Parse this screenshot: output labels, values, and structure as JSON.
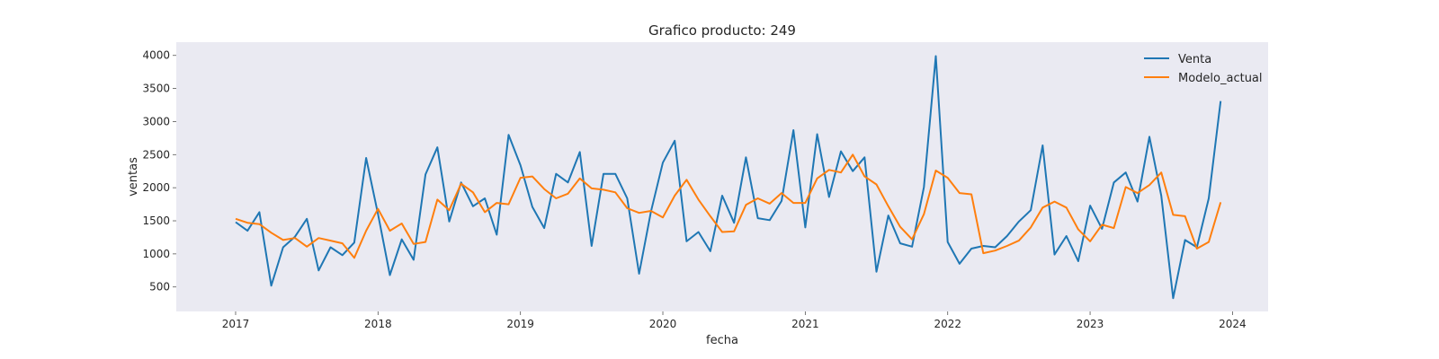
{
  "chart_data": {
    "type": "line",
    "title": "Grafico producto: 249",
    "xlabel": "fecha",
    "ylabel": "ventas",
    "x_ticks": [
      "2017",
      "2018",
      "2019",
      "2020",
      "2021",
      "2022",
      "2023",
      "2024"
    ],
    "y_ticks": [
      "500",
      "1000",
      "1500",
      "2000",
      "2500",
      "3000",
      "3500",
      "4000"
    ],
    "xlim": [
      "2016-08",
      "2024-04"
    ],
    "ylim": [
      130,
      4200
    ],
    "grid": false,
    "legend_position": "top-right",
    "x": [
      "2017-01",
      "2017-02",
      "2017-03",
      "2017-04",
      "2017-05",
      "2017-06",
      "2017-07",
      "2017-08",
      "2017-09",
      "2017-10",
      "2017-11",
      "2017-12",
      "2018-01",
      "2018-02",
      "2018-03",
      "2018-04",
      "2018-05",
      "2018-06",
      "2018-07",
      "2018-08",
      "2018-09",
      "2018-10",
      "2018-11",
      "2018-12",
      "2019-01",
      "2019-02",
      "2019-03",
      "2019-04",
      "2019-05",
      "2019-06",
      "2019-07",
      "2019-08",
      "2019-09",
      "2019-10",
      "2019-11",
      "2019-12",
      "2020-01",
      "2020-02",
      "2020-03",
      "2020-04",
      "2020-05",
      "2020-06",
      "2020-07",
      "2020-08",
      "2020-09",
      "2020-10",
      "2020-11",
      "2020-12",
      "2021-01",
      "2021-02",
      "2021-03",
      "2021-04",
      "2021-05",
      "2021-06",
      "2021-07",
      "2021-08",
      "2021-09",
      "2021-10",
      "2021-11",
      "2021-12",
      "2022-01",
      "2022-02",
      "2022-03",
      "2022-04",
      "2022-05",
      "2022-06",
      "2022-07",
      "2022-08",
      "2022-09",
      "2022-10",
      "2022-11",
      "2022-12",
      "2023-01",
      "2023-02",
      "2023-03",
      "2023-04",
      "2023-05",
      "2023-06",
      "2023-07",
      "2023-08",
      "2023-09",
      "2023-10",
      "2023-11",
      "2023-12"
    ],
    "series": [
      {
        "name": "Venta",
        "color": "#1f77b4",
        "values": [
          1480,
          1350,
          1630,
          520,
          1100,
          1260,
          1530,
          750,
          1100,
          980,
          1170,
          2450,
          1600,
          680,
          1220,
          910,
          2200,
          2610,
          1490,
          2080,
          1720,
          1840,
          1290,
          2800,
          2340,
          1710,
          1390,
          2210,
          2080,
          2540,
          1120,
          2210,
          2210,
          1840,
          700,
          1640,
          2380,
          2710,
          1190,
          1330,
          1040,
          1880,
          1470,
          2460,
          1540,
          1510,
          1800,
          2870,
          1400,
          2810,
          1860,
          2550,
          2250,
          2460,
          730,
          1580,
          1160,
          1110,
          2010,
          3990,
          1180,
          850,
          1080,
          1120,
          1100,
          1270,
          1490,
          1660,
          2640,
          990,
          1270,
          890,
          1730,
          1380,
          2080,
          2230,
          1790,
          2770,
          1880,
          330,
          1210,
          1100,
          1840,
          3310
        ]
      },
      {
        "name": "Modelo_actual",
        "color": "#ff7f0e",
        "values": [
          1530,
          1470,
          1450,
          1320,
          1210,
          1240,
          1110,
          1240,
          1200,
          1160,
          940,
          1350,
          1680,
          1350,
          1460,
          1150,
          1180,
          1820,
          1660,
          2060,
          1930,
          1630,
          1770,
          1750,
          2150,
          2170,
          1980,
          1840,
          1910,
          2140,
          1990,
          1970,
          1930,
          1690,
          1620,
          1650,
          1550,
          1880,
          2120,
          1820,
          1570,
          1330,
          1340,
          1740,
          1840,
          1760,
          1920,
          1770,
          1770,
          2140,
          2270,
          2230,
          2500,
          2170,
          2050,
          1720,
          1410,
          1220,
          1600,
          2260,
          2150,
          1920,
          1900,
          1010,
          1050,
          1120,
          1200,
          1400,
          1700,
          1790,
          1700,
          1370,
          1190,
          1440,
          1390,
          2010,
          1920,
          2040,
          2230,
          1590,
          1570,
          1080,
          1180,
          1780
        ]
      }
    ]
  }
}
